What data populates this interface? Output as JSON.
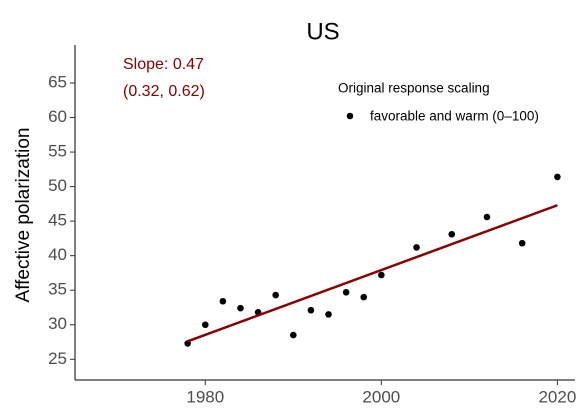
{
  "chart_data": {
    "type": "scatter",
    "title": "US",
    "y_label": "Affective polarization",
    "x": [
      1978,
      1980,
      1982,
      1984,
      1986,
      1988,
      1990,
      1992,
      1994,
      1996,
      1998,
      2000,
      2004,
      2008,
      2012,
      2016,
      2020
    ],
    "series": [
      {
        "name": "favorable and warm (0–100)",
        "color": "#000000",
        "values": [
          27.3,
          30.0,
          33.4,
          32.4,
          31.8,
          34.3,
          28.5,
          32.1,
          31.5,
          34.7,
          34.0,
          37.2,
          41.2,
          43.1,
          45.6,
          41.8,
          51.4
        ]
      }
    ],
    "fit": {
      "x": [
        1978,
        2020
      ],
      "values": [
        27.6,
        47.3
      ],
      "color": "#8b0000"
    },
    "annotations": [
      "Slope: 0.47",
      "(0.32, 0.62)"
    ],
    "annotation_color": "#8b0000",
    "legend_title": "Original response scaling",
    "xlim": [
      1965.2,
      2022
    ],
    "xticks": [
      1980,
      2000,
      2020
    ],
    "ylim": [
      22,
      70.5
    ],
    "yticks": [
      25,
      30,
      35,
      40,
      45,
      50,
      55,
      60,
      65
    ]
  }
}
